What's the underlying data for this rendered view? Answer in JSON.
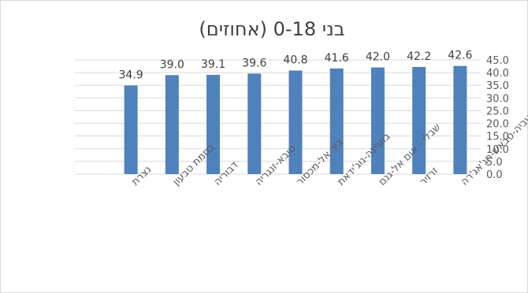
{
  "chart_data": {
    "type": "bar",
    "title": "בני 0-18 (אחוזים)",
    "categories": [
      "נצרת",
      "בסמת טבעון",
      "דבוריה",
      "טובא-זנגריה",
      "ביר אל-מכסור",
      "בועיינה-נוג'ידאת",
      "שבלי - אום אל-גנם",
      "זרזיר",
      "כעביה-טבאש-חג'אג'רה"
    ],
    "values": [
      34.9,
      39.0,
      39.1,
      39.6,
      40.8,
      41.6,
      42.0,
      42.2,
      42.6
    ],
    "value_labels": [
      "34.9",
      "39.0",
      "39.1",
      "39.6",
      "40.8",
      "41.6",
      "42.0",
      "42.2",
      "42.6"
    ],
    "y_ticks": [
      "0.0",
      "5.0",
      "10.0",
      "15.0",
      "20.0",
      "25.0",
      "30.0",
      "35.0",
      "40.0",
      "45.0"
    ],
    "ylim": [
      0,
      45
    ],
    "yaxis_side": "right",
    "grid": true,
    "legend": "none",
    "bar_color": "#4f81bd",
    "grid_color": "#d9d9d9"
  }
}
